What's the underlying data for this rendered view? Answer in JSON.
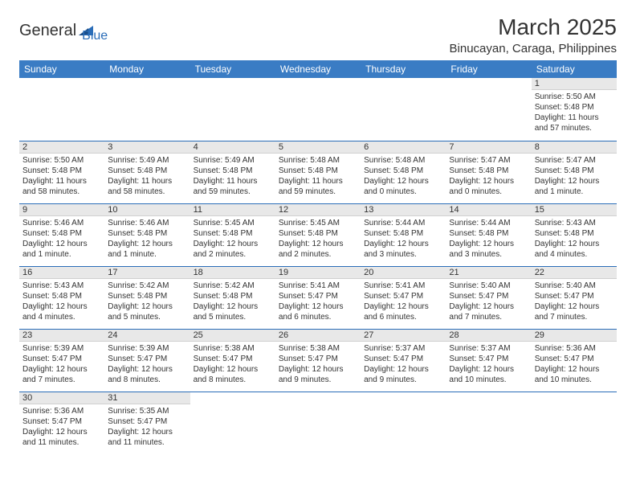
{
  "logo": {
    "text1": "General",
    "text2": "Blue"
  },
  "title": "March 2025",
  "location": "Binucayan, Caraga, Philippines",
  "colors": {
    "header_bg": "#3a7cc4",
    "header_text": "#ffffff",
    "daynum_bg": "#e8e8e8",
    "border": "#2a6db8",
    "logo_accent": "#2a6db8",
    "text": "#333333"
  },
  "day_headers": [
    "Sunday",
    "Monday",
    "Tuesday",
    "Wednesday",
    "Thursday",
    "Friday",
    "Saturday"
  ],
  "weeks": [
    [
      null,
      null,
      null,
      null,
      null,
      null,
      {
        "n": "1",
        "sunrise": "Sunrise: 5:50 AM",
        "sunset": "Sunset: 5:48 PM",
        "daylight": "Daylight: 11 hours and 57 minutes."
      }
    ],
    [
      {
        "n": "2",
        "sunrise": "Sunrise: 5:50 AM",
        "sunset": "Sunset: 5:48 PM",
        "daylight": "Daylight: 11 hours and 58 minutes."
      },
      {
        "n": "3",
        "sunrise": "Sunrise: 5:49 AM",
        "sunset": "Sunset: 5:48 PM",
        "daylight": "Daylight: 11 hours and 58 minutes."
      },
      {
        "n": "4",
        "sunrise": "Sunrise: 5:49 AM",
        "sunset": "Sunset: 5:48 PM",
        "daylight": "Daylight: 11 hours and 59 minutes."
      },
      {
        "n": "5",
        "sunrise": "Sunrise: 5:48 AM",
        "sunset": "Sunset: 5:48 PM",
        "daylight": "Daylight: 11 hours and 59 minutes."
      },
      {
        "n": "6",
        "sunrise": "Sunrise: 5:48 AM",
        "sunset": "Sunset: 5:48 PM",
        "daylight": "Daylight: 12 hours and 0 minutes."
      },
      {
        "n": "7",
        "sunrise": "Sunrise: 5:47 AM",
        "sunset": "Sunset: 5:48 PM",
        "daylight": "Daylight: 12 hours and 0 minutes."
      },
      {
        "n": "8",
        "sunrise": "Sunrise: 5:47 AM",
        "sunset": "Sunset: 5:48 PM",
        "daylight": "Daylight: 12 hours and 1 minute."
      }
    ],
    [
      {
        "n": "9",
        "sunrise": "Sunrise: 5:46 AM",
        "sunset": "Sunset: 5:48 PM",
        "daylight": "Daylight: 12 hours and 1 minute."
      },
      {
        "n": "10",
        "sunrise": "Sunrise: 5:46 AM",
        "sunset": "Sunset: 5:48 PM",
        "daylight": "Daylight: 12 hours and 1 minute."
      },
      {
        "n": "11",
        "sunrise": "Sunrise: 5:45 AM",
        "sunset": "Sunset: 5:48 PM",
        "daylight": "Daylight: 12 hours and 2 minutes."
      },
      {
        "n": "12",
        "sunrise": "Sunrise: 5:45 AM",
        "sunset": "Sunset: 5:48 PM",
        "daylight": "Daylight: 12 hours and 2 minutes."
      },
      {
        "n": "13",
        "sunrise": "Sunrise: 5:44 AM",
        "sunset": "Sunset: 5:48 PM",
        "daylight": "Daylight: 12 hours and 3 minutes."
      },
      {
        "n": "14",
        "sunrise": "Sunrise: 5:44 AM",
        "sunset": "Sunset: 5:48 PM",
        "daylight": "Daylight: 12 hours and 3 minutes."
      },
      {
        "n": "15",
        "sunrise": "Sunrise: 5:43 AM",
        "sunset": "Sunset: 5:48 PM",
        "daylight": "Daylight: 12 hours and 4 minutes."
      }
    ],
    [
      {
        "n": "16",
        "sunrise": "Sunrise: 5:43 AM",
        "sunset": "Sunset: 5:48 PM",
        "daylight": "Daylight: 12 hours and 4 minutes."
      },
      {
        "n": "17",
        "sunrise": "Sunrise: 5:42 AM",
        "sunset": "Sunset: 5:48 PM",
        "daylight": "Daylight: 12 hours and 5 minutes."
      },
      {
        "n": "18",
        "sunrise": "Sunrise: 5:42 AM",
        "sunset": "Sunset: 5:48 PM",
        "daylight": "Daylight: 12 hours and 5 minutes."
      },
      {
        "n": "19",
        "sunrise": "Sunrise: 5:41 AM",
        "sunset": "Sunset: 5:47 PM",
        "daylight": "Daylight: 12 hours and 6 minutes."
      },
      {
        "n": "20",
        "sunrise": "Sunrise: 5:41 AM",
        "sunset": "Sunset: 5:47 PM",
        "daylight": "Daylight: 12 hours and 6 minutes."
      },
      {
        "n": "21",
        "sunrise": "Sunrise: 5:40 AM",
        "sunset": "Sunset: 5:47 PM",
        "daylight": "Daylight: 12 hours and 7 minutes."
      },
      {
        "n": "22",
        "sunrise": "Sunrise: 5:40 AM",
        "sunset": "Sunset: 5:47 PM",
        "daylight": "Daylight: 12 hours and 7 minutes."
      }
    ],
    [
      {
        "n": "23",
        "sunrise": "Sunrise: 5:39 AM",
        "sunset": "Sunset: 5:47 PM",
        "daylight": "Daylight: 12 hours and 7 minutes."
      },
      {
        "n": "24",
        "sunrise": "Sunrise: 5:39 AM",
        "sunset": "Sunset: 5:47 PM",
        "daylight": "Daylight: 12 hours and 8 minutes."
      },
      {
        "n": "25",
        "sunrise": "Sunrise: 5:38 AM",
        "sunset": "Sunset: 5:47 PM",
        "daylight": "Daylight: 12 hours and 8 minutes."
      },
      {
        "n": "26",
        "sunrise": "Sunrise: 5:38 AM",
        "sunset": "Sunset: 5:47 PM",
        "daylight": "Daylight: 12 hours and 9 minutes."
      },
      {
        "n": "27",
        "sunrise": "Sunrise: 5:37 AM",
        "sunset": "Sunset: 5:47 PM",
        "daylight": "Daylight: 12 hours and 9 minutes."
      },
      {
        "n": "28",
        "sunrise": "Sunrise: 5:37 AM",
        "sunset": "Sunset: 5:47 PM",
        "daylight": "Daylight: 12 hours and 10 minutes."
      },
      {
        "n": "29",
        "sunrise": "Sunrise: 5:36 AM",
        "sunset": "Sunset: 5:47 PM",
        "daylight": "Daylight: 12 hours and 10 minutes."
      }
    ],
    [
      {
        "n": "30",
        "sunrise": "Sunrise: 5:36 AM",
        "sunset": "Sunset: 5:47 PM",
        "daylight": "Daylight: 12 hours and 11 minutes."
      },
      {
        "n": "31",
        "sunrise": "Sunrise: 5:35 AM",
        "sunset": "Sunset: 5:47 PM",
        "daylight": "Daylight: 12 hours and 11 minutes."
      },
      null,
      null,
      null,
      null,
      null
    ]
  ]
}
